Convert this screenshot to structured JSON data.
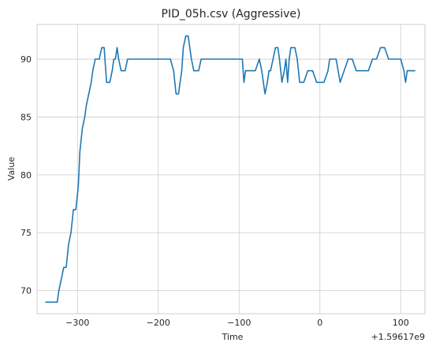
{
  "chart_data": {
    "type": "line",
    "title": "PID_05h.csv (Aggressive)",
    "xlabel": "Time",
    "ylabel": "Value",
    "x_offset_label": "+1.59617e9",
    "xlim": [
      -350,
      130
    ],
    "ylim": [
      68,
      93
    ],
    "xticks": [
      -300,
      -200,
      -100,
      0,
      100
    ],
    "xtick_labels": [
      "−300",
      "−200",
      "−100",
      "0",
      "100"
    ],
    "yticks": [
      70,
      75,
      80,
      85,
      90
    ],
    "ytick_labels": [
      "70",
      "75",
      "80",
      "85",
      "90"
    ],
    "grid": true,
    "legend": false,
    "colors": {
      "series": "#1f77b4"
    },
    "series": [
      {
        "x": [
          -340,
          -325,
          -323,
          -320,
          -317,
          -314,
          -311,
          -308,
          -305,
          -302,
          -299,
          -297,
          -294,
          -291,
          -289,
          -286,
          -283,
          -281,
          -278,
          -276,
          -273,
          -270,
          -267,
          -264,
          -260,
          -257,
          -255,
          -253,
          -251,
          -249,
          -246,
          -243,
          -241,
          -238,
          -236,
          -234,
          -231,
          -225,
          -221,
          -215,
          -200,
          -185,
          -181,
          -178,
          -175,
          -173,
          -171,
          -169,
          -166,
          -163,
          -161,
          -159,
          -156,
          -153,
          -150,
          -147,
          -144,
          -140,
          -134,
          -130,
          -110,
          -96,
          -94,
          -92,
          -89,
          -85,
          -80,
          -75,
          -72,
          -68,
          -65,
          -63,
          -61,
          -58,
          -55,
          -52,
          -50,
          -47,
          -44,
          -42,
          -40,
          -38,
          -36,
          -34,
          -31,
          -28,
          -25,
          -20,
          -15,
          -13,
          -11,
          -9,
          -4,
          0,
          5,
          10,
          12,
          15,
          20,
          25,
          35,
          40,
          45,
          50,
          55,
          60,
          65,
          70,
          75,
          80,
          85,
          90,
          95,
          100,
          104,
          106,
          108,
          110,
          112,
          114,
          118
        ],
        "y": [
          69,
          69,
          70,
          71,
          72,
          72,
          74,
          75,
          77,
          77,
          79,
          82,
          84,
          85,
          86,
          87,
          88,
          89,
          90,
          90,
          90,
          91,
          91,
          88,
          88,
          89,
          90,
          90,
          91,
          90,
          89,
          89,
          89,
          90,
          90,
          90,
          90,
          90,
          90,
          90,
          90,
          90,
          89,
          87,
          87,
          88,
          89,
          91,
          92,
          92,
          91,
          90,
          89,
          89,
          89,
          90,
          90,
          90,
          90,
          90,
          90,
          90,
          88,
          89,
          89,
          89,
          89,
          90,
          89,
          87,
          88,
          89,
          89,
          90,
          91,
          91,
          90,
          88,
          89,
          90,
          88,
          90,
          91,
          91,
          91,
          90,
          88,
          88,
          89,
          89,
          89,
          89,
          88,
          88,
          88,
          89,
          90,
          90,
          90,
          88,
          90,
          90,
          89,
          89,
          89,
          89,
          90,
          90,
          91,
          91,
          90,
          90,
          90,
          90,
          89,
          88,
          89,
          89,
          89,
          89,
          89
        ]
      }
    ]
  }
}
